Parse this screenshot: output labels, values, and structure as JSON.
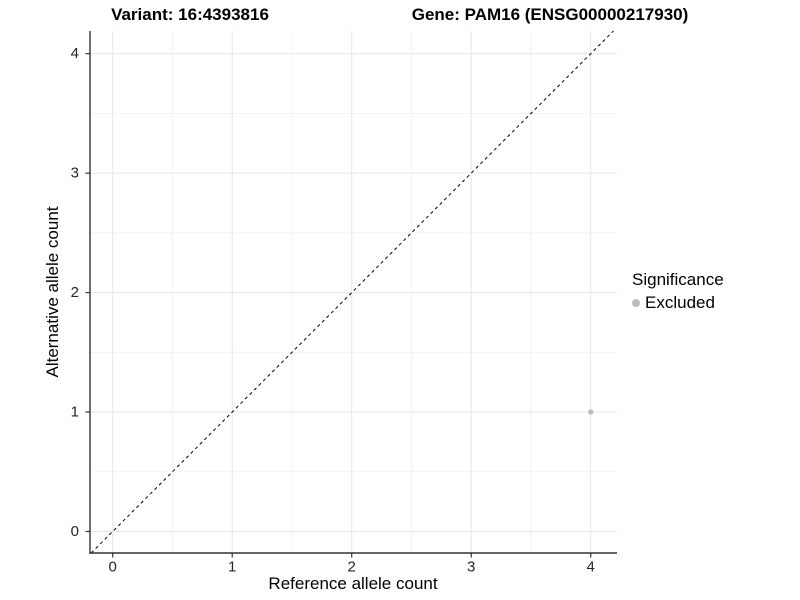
{
  "titles": {
    "variant": "Variant: 16:4393816",
    "gene": "Gene: PAM16 (ENSG00000217930)"
  },
  "axes": {
    "x_label": "Reference allele count",
    "y_label": "Alternative allele count"
  },
  "legend": {
    "title": "Significance",
    "items": [
      {
        "label": "Excluded",
        "color": "#bdbdbd",
        "marker": "circle"
      }
    ]
  },
  "chart_data": {
    "type": "scatter",
    "title_left": "Variant: 16:4393816",
    "title_right": "Gene: PAM16 (ENSG00000217930)",
    "xlabel": "Reference allele count",
    "ylabel": "Alternative allele count",
    "x_ticks": [
      0,
      1,
      2,
      3,
      4
    ],
    "y_ticks": [
      0,
      1,
      2,
      3,
      4
    ],
    "xlim": [
      -0.19,
      4.22
    ],
    "ylim": [
      -0.18,
      4.19
    ],
    "grid": {
      "major": true,
      "minor": true,
      "major_color": "#e6e6e6",
      "minor_color": "#f2f2f2"
    },
    "legend_position": "right",
    "series": [
      {
        "name": "Excluded",
        "color": "#bdbdbd",
        "points": [
          {
            "x": 4,
            "y": 1
          }
        ]
      }
    ],
    "reference_line": {
      "type": "identity y=x",
      "style": "dashed",
      "color": "#000000"
    }
  },
  "style": {
    "axis_color": "#333333",
    "tick_color": "#333333",
    "tick_label_color": "#262626",
    "background": "#ffffff"
  }
}
